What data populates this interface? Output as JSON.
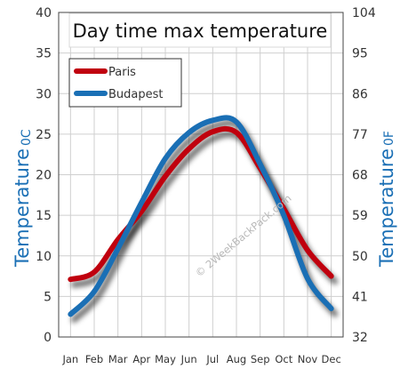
{
  "chart_data": {
    "type": "line",
    "title": "Day time max temperature",
    "ylabel_left": "Temperature",
    "ylabel_left_unit": "0C",
    "ylabel_right": "Temperature",
    "ylabel_right_unit": "0F",
    "categories": [
      "Jan",
      "Feb",
      "Mar",
      "Apr",
      "May",
      "Jun",
      "Jul",
      "Aug",
      "Sep",
      "Oct",
      "Nov",
      "Dec"
    ],
    "ylim": [
      0,
      40
    ],
    "yticks_left": [
      "0",
      "5",
      "10",
      "15",
      "20",
      "25",
      "30",
      "35",
      "40"
    ],
    "yticks_right": [
      "32",
      "41",
      "50",
      "59",
      "68",
      "77",
      "86",
      "95",
      "104"
    ],
    "grid": true,
    "legend_position": "top-left",
    "series": [
      {
        "name": "Paris",
        "color": "#c0000e",
        "values": [
          7.1,
          8.0,
          12.0,
          15.5,
          19.8,
          23.2,
          25.3,
          25.2,
          20.8,
          15.8,
          10.7,
          7.5
        ]
      },
      {
        "name": "Budapest",
        "color": "#1a6fb5",
        "values": [
          2.8,
          5.6,
          10.9,
          16.6,
          22.0,
          25.2,
          26.7,
          26.5,
          21.3,
          15.0,
          7.2,
          3.5
        ]
      }
    ],
    "watermark": "© 2WeekBackPack.com"
  }
}
